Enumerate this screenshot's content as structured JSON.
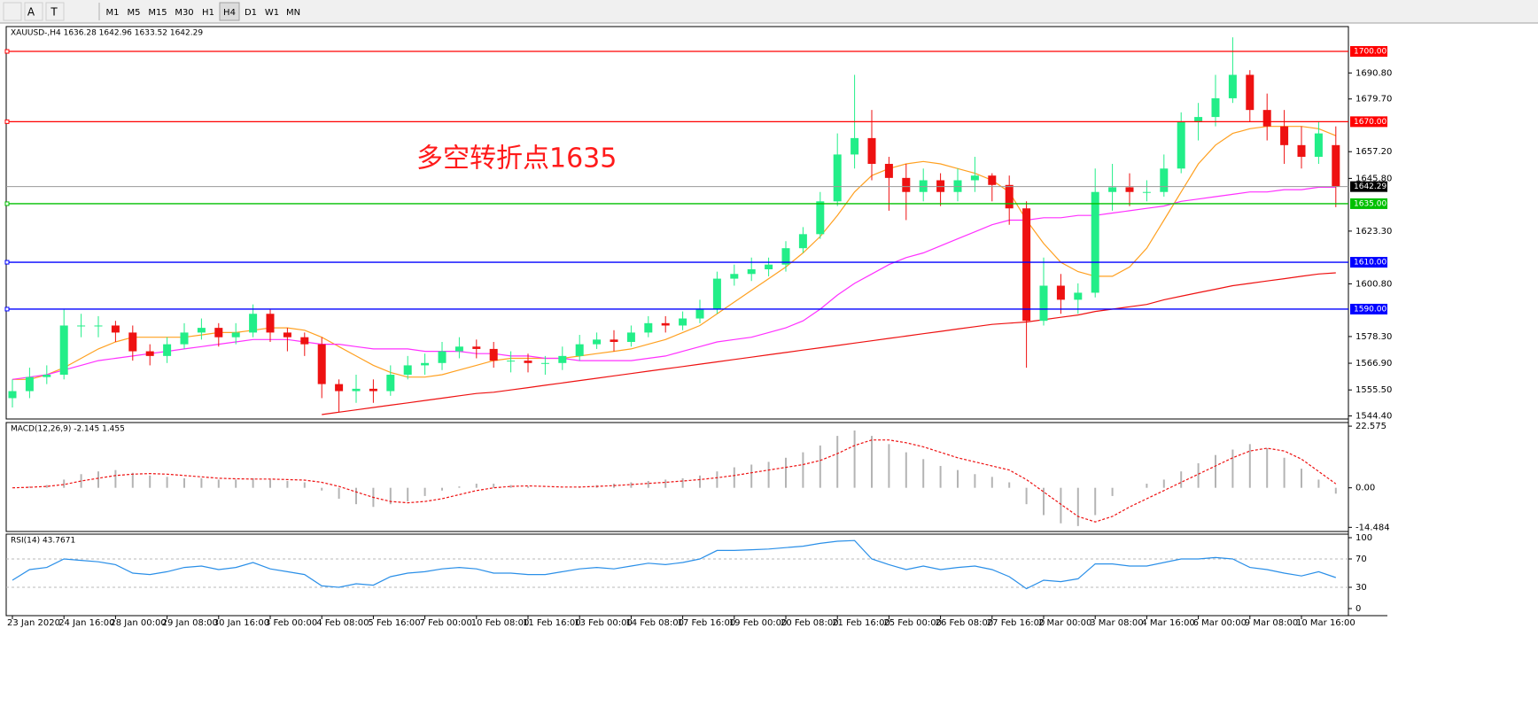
{
  "toolbar": {
    "tools": [
      "A",
      "T"
    ],
    "timeframes": [
      "M1",
      "M5",
      "M15",
      "M30",
      "H1",
      "H4",
      "D1",
      "W1",
      "MN"
    ],
    "active": "H4"
  },
  "chart_data": [
    {
      "type": "candlestick",
      "title": "XAUUSD-,H4  1636.28 1642.96 1633.52 1642.29",
      "categories": [
        "23 Jan 2020",
        null,
        null,
        "24 Jan 16:00",
        null,
        null,
        "28 Jan 00:00",
        null,
        null,
        "29 Jan 08:00",
        null,
        null,
        "30 Jan 16:00",
        null,
        null,
        "3 Feb 00:00",
        null,
        null,
        "4 Feb 08:00",
        null,
        null,
        "5 Feb 16:00",
        null,
        null,
        "7 Feb 00:00",
        null,
        null,
        "10 Feb 08:00",
        null,
        null,
        "11 Feb 16:00",
        null,
        null,
        "13 Feb 00:00",
        null,
        null,
        "14 Feb 08:00",
        null,
        null,
        "17 Feb 16:00",
        null,
        null,
        "19 Feb 00:00",
        null,
        null,
        "20 Feb 08:00",
        null,
        null,
        "21 Feb 16:00",
        null,
        null,
        "25 Feb 00:00",
        null,
        null,
        "26 Feb 08:00",
        null,
        null,
        "27 Feb 16:00",
        null,
        null,
        "2 Mar 00:00",
        null,
        null,
        "3 Mar 08:00",
        null,
        null,
        "4 Mar 16:00",
        null,
        null,
        "6 Mar 00:00",
        null,
        null,
        "9 Mar 08:00",
        null,
        null,
        "10 Mar 16:00",
        null,
        null
      ],
      "open": [
        1552,
        1555,
        1561,
        1562,
        1583,
        1583,
        1583,
        1580,
        1572,
        1570,
        1575,
        1580,
        1582,
        1578,
        1580,
        1588,
        1580,
        1578,
        1575,
        1558,
        1555,
        1556,
        1555,
        1562,
        1566,
        1567,
        1572,
        1574,
        1573,
        1568,
        1568,
        1567,
        1567,
        1570,
        1575,
        1577,
        1576,
        1580,
        1584,
        1583,
        1586,
        1590,
        1603,
        1605,
        1607,
        1609,
        1616,
        1622,
        1636,
        1656,
        1663,
        1652,
        1646,
        1640,
        1645,
        1640,
        1645,
        1647,
        1643,
        1633,
        1585,
        1600,
        1594,
        1597,
        1640,
        1642,
        1640,
        1640,
        1650,
        1670,
        1672,
        1680,
        1690,
        1675,
        1668,
        1660,
        1655,
        1660
      ],
      "high": [
        1560,
        1565,
        1566,
        1590,
        1588,
        1587,
        1585,
        1583,
        1575,
        1578,
        1584,
        1586,
        1584,
        1584,
        1592,
        1590,
        1582,
        1580,
        1578,
        1560,
        1562,
        1560,
        1566,
        1570,
        1571,
        1576,
        1578,
        1577,
        1576,
        1572,
        1571,
        1570,
        1574,
        1579,
        1580,
        1581,
        1583,
        1587,
        1587,
        1589,
        1594,
        1606,
        1609,
        1612,
        1612,
        1619,
        1625,
        1640,
        1665,
        1690,
        1675,
        1655,
        1652,
        1650,
        1648,
        1650,
        1655,
        1648,
        1647,
        1636,
        1612,
        1605,
        1601,
        1650,
        1652,
        1648,
        1645,
        1656,
        1674,
        1678,
        1690,
        1706,
        1692,
        1682,
        1675,
        1668,
        1670,
        1668
      ],
      "low": [
        1548,
        1552,
        1558,
        1560,
        1578,
        1578,
        1576,
        1568,
        1566,
        1567,
        1573,
        1577,
        1574,
        1575,
        1578,
        1576,
        1572,
        1570,
        1552,
        1546,
        1550,
        1550,
        1553,
        1560,
        1562,
        1564,
        1569,
        1569,
        1565,
        1563,
        1563,
        1562,
        1564,
        1568,
        1573,
        1572,
        1574,
        1578,
        1580,
        1581,
        1584,
        1588,
        1600,
        1602,
        1604,
        1606,
        1614,
        1620,
        1634,
        1650,
        1645,
        1632,
        1628,
        1636,
        1634,
        1636,
        1640,
        1636,
        1626,
        1565,
        1583,
        1588,
        1588,
        1595,
        1632,
        1634,
        1636,
        1638,
        1648,
        1662,
        1668,
        1678,
        1670,
        1662,
        1652,
        1650,
        1652,
        1633.52
      ],
      "close": [
        1555,
        1561,
        1562,
        1583,
        1583,
        1583,
        1580,
        1572,
        1570,
        1575,
        1580,
        1582,
        1578,
        1580,
        1588,
        1580,
        1578,
        1575,
        1558,
        1555,
        1556,
        1555,
        1562,
        1566,
        1567,
        1572,
        1574,
        1573,
        1568,
        1568,
        1567,
        1567,
        1570,
        1575,
        1577,
        1576,
        1580,
        1584,
        1583,
        1586,
        1590,
        1603,
        1605,
        1607,
        1609,
        1616,
        1622,
        1636,
        1656,
        1663,
        1652,
        1646,
        1640,
        1645,
        1640,
        1645,
        1647,
        1643,
        1633,
        1585,
        1600,
        1594,
        1597,
        1640,
        1642,
        1640,
        1640,
        1650,
        1670,
        1672,
        1680,
        1690,
        1675,
        1668,
        1660,
        1655,
        1665,
        1642.29
      ],
      "up_color": "#22ee88",
      "down_color": "#ee1111",
      "series": [
        {
          "color": "#ffa020",
          "values": [
            1560,
            1560,
            1562,
            1565,
            1569,
            1573,
            1576,
            1578,
            1578,
            1578,
            1578,
            1579,
            1580,
            1580,
            1581,
            1582,
            1582,
            1581,
            1578,
            1574,
            1570,
            1566,
            1563,
            1561,
            1561,
            1562,
            1564,
            1566,
            1568,
            1569,
            1569,
            1569,
            1569,
            1570,
            1571,
            1572,
            1573,
            1575,
            1577,
            1580,
            1583,
            1588,
            1593,
            1598,
            1603,
            1608,
            1614,
            1621,
            1630,
            1640,
            1647,
            1650,
            1652,
            1653,
            1652,
            1650,
            1648,
            1645,
            1640,
            1628,
            1618,
            1610,
            1606,
            1604,
            1604,
            1608,
            1616,
            1628,
            1640,
            1652,
            1660,
            1665,
            1667,
            1668,
            1668,
            1668,
            1667,
            1664
          ]
        },
        {
          "color": "#ff30ff",
          "values": [
            1560,
            1561,
            1562,
            1564,
            1566,
            1568,
            1569,
            1570,
            1571,
            1572,
            1573,
            1574,
            1575,
            1576,
            1577,
            1577,
            1577,
            1576,
            1575,
            1575,
            1574,
            1573,
            1573,
            1573,
            1572,
            1572,
            1572,
            1571,
            1571,
            1570,
            1570,
            1569,
            1569,
            1568,
            1568,
            1568,
            1568,
            1569,
            1570,
            1572,
            1574,
            1576,
            1577,
            1578,
            1580,
            1582,
            1585,
            1590,
            1596,
            1601,
            1605,
            1609,
            1612,
            1614,
            1617,
            1620,
            1623,
            1626,
            1628,
            1628,
            1629,
            1629,
            1630,
            1630,
            1631,
            1632,
            1633,
            1634,
            1636,
            1637,
            1638,
            1639,
            1640,
            1640,
            1641,
            1641,
            1642,
            1642
          ]
        },
        {
          "color": "#ee1111",
          "values": [
            null,
            null,
            null,
            null,
            null,
            null,
            null,
            null,
            null,
            null,
            null,
            null,
            null,
            null,
            null,
            null,
            null,
            null,
            1545,
            1546,
            1547,
            1548,
            1549,
            1550,
            1551,
            1552,
            1553,
            1554,
            1554.5,
            1555.5,
            1556.5,
            1557.5,
            1558.5,
            1559.5,
            1560.5,
            1561.5,
            1562.5,
            1563.5,
            1564.5,
            1565.5,
            1566.5,
            1567.5,
            1568.5,
            1569.5,
            1570.5,
            1571.5,
            1572.5,
            1573.5,
            1574.5,
            1575.5,
            1576.5,
            1577.5,
            1578.5,
            1579.5,
            1580.5,
            1581.5,
            1582.5,
            1583.5,
            1584,
            1584.5,
            1585.5,
            1586.5,
            1587.5,
            1589,
            1590,
            1591,
            1592,
            1594,
            1595.5,
            1597,
            1598.5,
            1600,
            1601,
            1602,
            1603,
            1604,
            1605,
            1605.5
          ]
        }
      ],
      "levels": [
        {
          "value": 1700,
          "label": "1700.00",
          "color": "#ff0000"
        },
        {
          "value": 1670,
          "label": "1670.00",
          "color": "#ff0000"
        },
        {
          "value": 1635,
          "label": "1635.00",
          "color": "#00c000"
        },
        {
          "value": 1610,
          "label": "1610.00",
          "color": "#0000ff"
        },
        {
          "value": 1590,
          "label": "1590.00",
          "color": "#0000ff"
        }
      ],
      "last_price": 1642.29,
      "annotation": {
        "text": "多空转折点1635",
        "color": "#ff1a1a"
      },
      "ylim": [
        1543.1,
        1710.6
      ],
      "yticks": [
        {
          "value": 1690.8,
          "label": "1690.80"
        },
        {
          "value": 1679.7,
          "label": "1679.70"
        },
        {
          "value": 1657.2,
          "label": "1657.20"
        },
        {
          "value": 1645.8,
          "label": "1645.80"
        },
        {
          "value": 1623.3,
          "label": "1623.30"
        },
        {
          "value": 1600.8,
          "label": "1600.80"
        },
        {
          "value": 1578.3,
          "label": "1578.30"
        },
        {
          "value": 1566.9,
          "label": "1566.90"
        },
        {
          "value": 1555.5,
          "label": "1555.50"
        },
        {
          "value": 1544.4,
          "label": "1544.40"
        }
      ]
    },
    {
      "type": "macd",
      "title": "MACD(12,26,9) -2.145 1.455",
      "series": [
        {
          "type": "bar",
          "color": "#b4b4b4",
          "values": [
            0,
            0.5,
            1,
            3,
            5,
            6,
            6.5,
            5.5,
            4.5,
            4,
            3.5,
            3.5,
            3,
            3,
            3.5,
            3,
            2.5,
            2,
            -1,
            -4,
            -6,
            -7,
            -6,
            -5,
            -3,
            -1,
            0.5,
            1.5,
            1.5,
            1,
            0.5,
            0,
            0,
            0.5,
            1,
            1.5,
            2,
            2.5,
            3,
            3.5,
            4.5,
            6,
            7.5,
            8.5,
            9.5,
            11,
            13,
            15.5,
            19,
            21,
            19,
            16,
            13,
            10.5,
            8,
            6.5,
            5,
            4,
            2,
            -6,
            -10,
            -13,
            -14,
            -10,
            -3,
            0,
            1.5,
            3,
            6,
            9,
            12,
            14,
            16,
            14.5,
            11,
            7,
            3,
            -2.145
          ]
        },
        {
          "type": "line",
          "color": "#ee1111",
          "values": [
            0,
            0.2,
            0.5,
            1.2,
            2.5,
            3.5,
            4.5,
            5,
            5.2,
            5,
            4.5,
            4,
            3.5,
            3.3,
            3.2,
            3.2,
            3,
            2.8,
            2,
            0.5,
            -1.5,
            -3.5,
            -5,
            -5.5,
            -5,
            -4,
            -2.5,
            -1,
            0,
            0.5,
            0.7,
            0.5,
            0.3,
            0.3,
            0.5,
            0.8,
            1.2,
            1.6,
            2,
            2.5,
            3,
            3.7,
            4.5,
            5.5,
            6.5,
            7.5,
            8.5,
            10,
            12.5,
            15.5,
            17.5,
            17.5,
            16.5,
            15,
            13,
            11,
            9.5,
            8,
            6.5,
            3,
            -1.5,
            -6,
            -10.5,
            -12.5,
            -10.5,
            -7,
            -4,
            -1,
            2,
            5,
            8,
            11,
            13.5,
            14.5,
            13.5,
            10.5,
            6,
            1.455
          ]
        }
      ],
      "ylim": [
        -16,
        23.9
      ],
      "yticks": [
        22.575,
        {
          "value": 0,
          "label": "0.00"
        },
        -14.484
      ]
    },
    {
      "type": "rsi",
      "title": "RSI(14) 43.7671",
      "series": [
        {
          "type": "line",
          "color": "#2a8fe8",
          "values": [
            40,
            55,
            58,
            70,
            68,
            66,
            62,
            50,
            48,
            52,
            58,
            60,
            55,
            58,
            65,
            56,
            52,
            48,
            32,
            30,
            35,
            33,
            45,
            50,
            52,
            56,
            58,
            56,
            50,
            50,
            48,
            48,
            52,
            56,
            58,
            56,
            60,
            64,
            62,
            65,
            70,
            82,
            82,
            83,
            84,
            86,
            88,
            92,
            95,
            96,
            70,
            62,
            55,
            60,
            55,
            58,
            60,
            55,
            45,
            28,
            40,
            38,
            42,
            63,
            63,
            60,
            60,
            65,
            70,
            70,
            72,
            70,
            58,
            55,
            50,
            46,
            52,
            43.7671
          ]
        }
      ],
      "guide_lines": [
        70,
        30
      ],
      "ylim": [
        -10,
        105
      ],
      "yticks": [
        100,
        70,
        30,
        0
      ]
    }
  ]
}
